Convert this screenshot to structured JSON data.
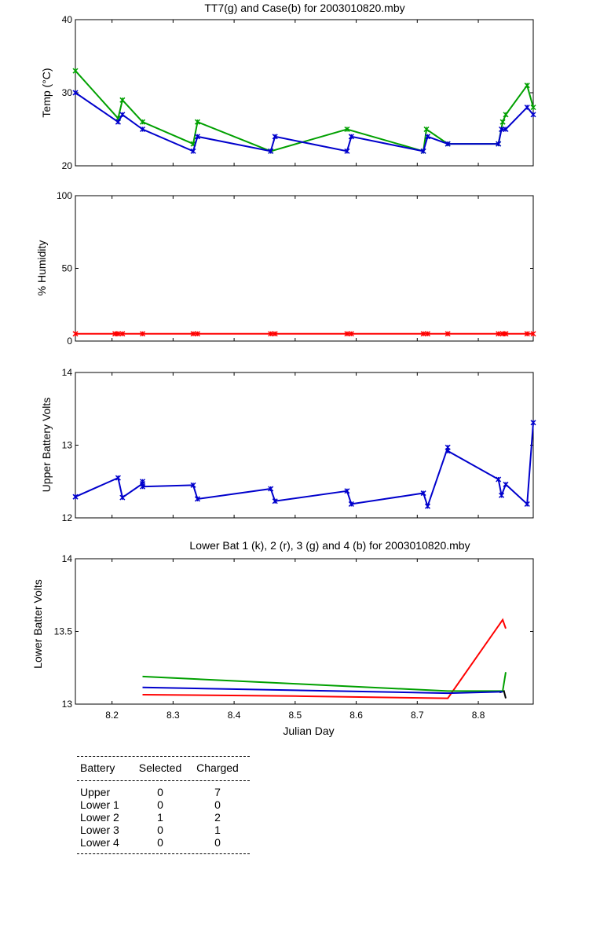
{
  "chart_data": [
    {
      "type": "line",
      "title": "TT7(g) and Case(b) for 2003010820.mby",
      "xlabel": "",
      "ylabel": "Temp  (°C)",
      "xlim": [
        8.14,
        8.89
      ],
      "ylim": [
        20,
        40
      ],
      "yticks": [
        20,
        30,
        40
      ],
      "grid": false,
      "series": [
        {
          "color": "#00a000",
          "x": [
            8.14,
            8.21,
            8.217,
            8.25,
            8.333,
            8.34,
            8.46,
            8.585,
            8.71,
            8.715,
            8.75,
            8.833,
            8.84,
            8.845,
            8.88,
            8.89
          ],
          "y": [
            33,
            26.5,
            29,
            26,
            23,
            26,
            22,
            25,
            22,
            25,
            23,
            23,
            26,
            27,
            31,
            28
          ]
        },
        {
          "color": "#0000cc",
          "x": [
            8.14,
            8.21,
            8.217,
            8.25,
            8.333,
            8.34,
            8.46,
            8.467,
            8.585,
            8.592,
            8.71,
            8.717,
            8.75,
            8.833,
            8.838,
            8.845,
            8.88,
            8.89
          ],
          "y": [
            30,
            26,
            27,
            25,
            22,
            24,
            22,
            24,
            22,
            24,
            22,
            24,
            23,
            23,
            25,
            25,
            28,
            27
          ]
        }
      ]
    },
    {
      "type": "line",
      "title": "",
      "xlabel": "",
      "ylabel": "% Humidity",
      "xlim": [
        8.14,
        8.89
      ],
      "ylim": [
        0,
        100
      ],
      "yticks": [
        0,
        50,
        100
      ],
      "grid": false,
      "series": [
        {
          "color": "#ff0000",
          "x": [
            8.14,
            8.205,
            8.21,
            8.217,
            8.25,
            8.333,
            8.34,
            8.46,
            8.467,
            8.585,
            8.592,
            8.71,
            8.717,
            8.75,
            8.833,
            8.84,
            8.845,
            8.88,
            8.89
          ],
          "y": [
            5,
            5,
            5,
            5,
            5,
            5,
            5,
            5,
            5,
            5,
            5,
            5,
            5,
            5,
            5,
            5,
            5,
            5,
            5
          ]
        }
      ]
    },
    {
      "type": "line",
      "title": "",
      "xlabel": "",
      "ylabel": "Upper Battery Volts",
      "xlim": [
        8.14,
        8.89
      ],
      "ylim": [
        12,
        14
      ],
      "yticks": [
        12,
        13,
        14
      ],
      "grid": false,
      "series": [
        {
          "color": "#0000cc",
          "x": [
            8.14,
            8.21,
            8.217,
            8.25,
            8.25,
            8.25,
            8.333,
            8.34,
            8.46,
            8.467,
            8.585,
            8.592,
            8.71,
            8.717,
            8.75,
            8.75,
            8.833,
            8.838,
            8.845,
            8.88,
            8.89
          ],
          "y": [
            12.29,
            12.55,
            12.28,
            12.47,
            12.5,
            12.43,
            12.45,
            12.26,
            12.4,
            12.23,
            12.37,
            12.19,
            12.34,
            12.16,
            12.97,
            12.92,
            12.53,
            12.31,
            12.46,
            12.19,
            13.31
          ]
        }
      ]
    },
    {
      "type": "line",
      "title": "Lower Bat 1 (k), 2 (r), 3 (g) and 4 (b) for 2003010820.mby",
      "xlabel": "Julian Day",
      "ylabel": "Lower Batter Volts",
      "xlim": [
        8.14,
        8.89
      ],
      "ylim": [
        13,
        14
      ],
      "yticks": [
        13,
        13.5,
        14
      ],
      "xticks": [
        8.2,
        8.3,
        8.4,
        8.5,
        8.6,
        8.7,
        8.8
      ],
      "grid": false,
      "series": [
        {
          "color": "#000000",
          "x": [
            8.835,
            8.842,
            8.845
          ],
          "y": [
            13.08,
            13.09,
            13.04
          ]
        },
        {
          "color": "#ff0000",
          "x": [
            8.25,
            8.5,
            8.75,
            8.84,
            8.845
          ],
          "y": [
            13.065,
            13.055,
            13.04,
            13.58,
            13.52
          ]
        },
        {
          "color": "#00a000",
          "x": [
            8.25,
            8.5,
            8.75,
            8.84,
            8.845
          ],
          "y": [
            13.19,
            13.14,
            13.09,
            13.09,
            13.22
          ]
        },
        {
          "color": "#0000cc",
          "x": [
            8.25,
            8.5,
            8.75,
            8.84
          ],
          "y": [
            13.115,
            13.095,
            13.075,
            13.085
          ]
        }
      ]
    }
  ],
  "table": {
    "headers": [
      "Battery",
      "Selected",
      "Charged"
    ],
    "rows": [
      [
        "Upper",
        "0",
        "7"
      ],
      [
        "Lower 1",
        "0",
        "0"
      ],
      [
        "Lower 2",
        "1",
        "2"
      ],
      [
        "Lower 3",
        "0",
        "1"
      ],
      [
        "Lower 4",
        "0",
        "0"
      ]
    ]
  }
}
